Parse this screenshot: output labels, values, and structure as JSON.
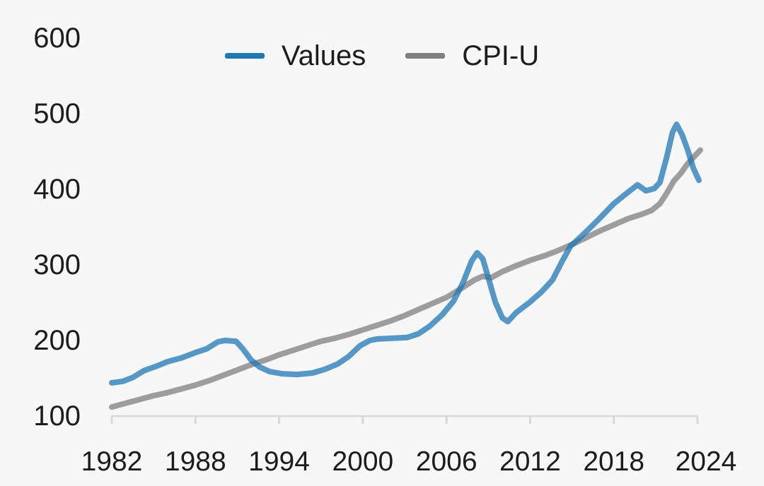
{
  "colors": {
    "background": "#f7f7f7",
    "text": "#1c1c1c",
    "axis": "#d8d8d8",
    "series_blue": "#1f77b4",
    "series_gray": "#7f7f7f"
  },
  "chart_data": {
    "type": "line",
    "title": "",
    "xlabel": "",
    "ylabel": "",
    "grid": false,
    "legend": {
      "position": "top-center",
      "entries": [
        {
          "label": "Values",
          "color": "#1f77b4"
        },
        {
          "label": "CPI-U",
          "color": "#7f7f7f"
        }
      ]
    },
    "x": {
      "min": 1982,
      "max": 2024,
      "ticks": [
        1982,
        1988,
        1994,
        2000,
        2006,
        2012,
        2018,
        2024
      ]
    },
    "y": {
      "min": 100,
      "max": 600,
      "ticks": [
        100,
        200,
        300,
        400,
        500,
        600
      ]
    },
    "series": [
      {
        "name": "CPI-U",
        "color": "#7f7f7f",
        "opacity": 0.75,
        "points": [
          [
            1982.0,
            112
          ],
          [
            1983.0,
            117
          ],
          [
            1984.0,
            122
          ],
          [
            1985.0,
            127
          ],
          [
            1986.0,
            131
          ],
          [
            1987.0,
            136
          ],
          [
            1988.0,
            141
          ],
          [
            1989.0,
            147
          ],
          [
            1990.0,
            154
          ],
          [
            1991.0,
            161
          ],
          [
            1992.0,
            168
          ],
          [
            1993.0,
            174
          ],
          [
            1994.0,
            181
          ],
          [
            1995.0,
            187
          ],
          [
            1996.0,
            193
          ],
          [
            1997.0,
            199
          ],
          [
            1998.0,
            203
          ],
          [
            1999.0,
            208
          ],
          [
            2000.0,
            214
          ],
          [
            2001.0,
            220
          ],
          [
            2002.0,
            226
          ],
          [
            2003.0,
            233
          ],
          [
            2004.0,
            241
          ],
          [
            2005.0,
            249
          ],
          [
            2006.0,
            257
          ],
          [
            2007.0,
            268
          ],
          [
            2008.0,
            280
          ],
          [
            2008.6,
            285
          ],
          [
            2009.2,
            283
          ],
          [
            2010.0,
            291
          ],
          [
            2011.0,
            299
          ],
          [
            2012.0,
            306
          ],
          [
            2013.0,
            312
          ],
          [
            2014.0,
            319
          ],
          [
            2015.0,
            327
          ],
          [
            2016.0,
            336
          ],
          [
            2017.0,
            345
          ],
          [
            2018.0,
            353
          ],
          [
            2019.0,
            361
          ],
          [
            2020.0,
            367
          ],
          [
            2020.7,
            372
          ],
          [
            2021.3,
            381
          ],
          [
            2021.8,
            395
          ],
          [
            2022.3,
            411
          ],
          [
            2022.8,
            421
          ],
          [
            2023.3,
            434
          ],
          [
            2023.8,
            444
          ],
          [
            2024.2,
            452
          ]
        ]
      },
      {
        "name": "Values",
        "color": "#1f77b4",
        "opacity": 0.75,
        "points": [
          [
            1982.0,
            144
          ],
          [
            1982.8,
            146
          ],
          [
            1983.5,
            151
          ],
          [
            1984.3,
            160
          ],
          [
            1985.2,
            166
          ],
          [
            1986.0,
            172
          ],
          [
            1987.0,
            177
          ],
          [
            1988.0,
            184
          ],
          [
            1988.8,
            189
          ],
          [
            1989.6,
            198
          ],
          [
            1990.1,
            200
          ],
          [
            1990.9,
            199
          ],
          [
            1991.4,
            189
          ],
          [
            1992.0,
            174
          ],
          [
            1992.6,
            165
          ],
          [
            1993.3,
            159
          ],
          [
            1994.2,
            156
          ],
          [
            1995.3,
            155
          ],
          [
            1996.4,
            157
          ],
          [
            1997.3,
            162
          ],
          [
            1998.2,
            169
          ],
          [
            1999.0,
            179
          ],
          [
            1999.8,
            193
          ],
          [
            2000.5,
            200
          ],
          [
            2001.0,
            202
          ],
          [
            2002.2,
            203
          ],
          [
            2003.2,
            204
          ],
          [
            2004.0,
            209
          ],
          [
            2004.8,
            219
          ],
          [
            2005.7,
            234
          ],
          [
            2006.5,
            252
          ],
          [
            2007.2,
            277
          ],
          [
            2007.8,
            305
          ],
          [
            2008.2,
            316
          ],
          [
            2008.6,
            308
          ],
          [
            2009.0,
            283
          ],
          [
            2009.5,
            251
          ],
          [
            2010.0,
            230
          ],
          [
            2010.4,
            225
          ],
          [
            2011.0,
            237
          ],
          [
            2012.0,
            251
          ],
          [
            2012.8,
            264
          ],
          [
            2013.6,
            280
          ],
          [
            2014.3,
            305
          ],
          [
            2014.9,
            325
          ],
          [
            2015.8,
            340
          ],
          [
            2016.9,
            360
          ],
          [
            2018.0,
            381
          ],
          [
            2018.8,
            393
          ],
          [
            2019.7,
            406
          ],
          [
            2020.3,
            398
          ],
          [
            2020.9,
            401
          ],
          [
            2021.3,
            409
          ],
          [
            2021.8,
            443
          ],
          [
            2022.2,
            475
          ],
          [
            2022.5,
            486
          ],
          [
            2022.9,
            472
          ],
          [
            2023.3,
            452
          ],
          [
            2023.7,
            428
          ],
          [
            2024.1,
            412
          ]
        ]
      }
    ]
  }
}
